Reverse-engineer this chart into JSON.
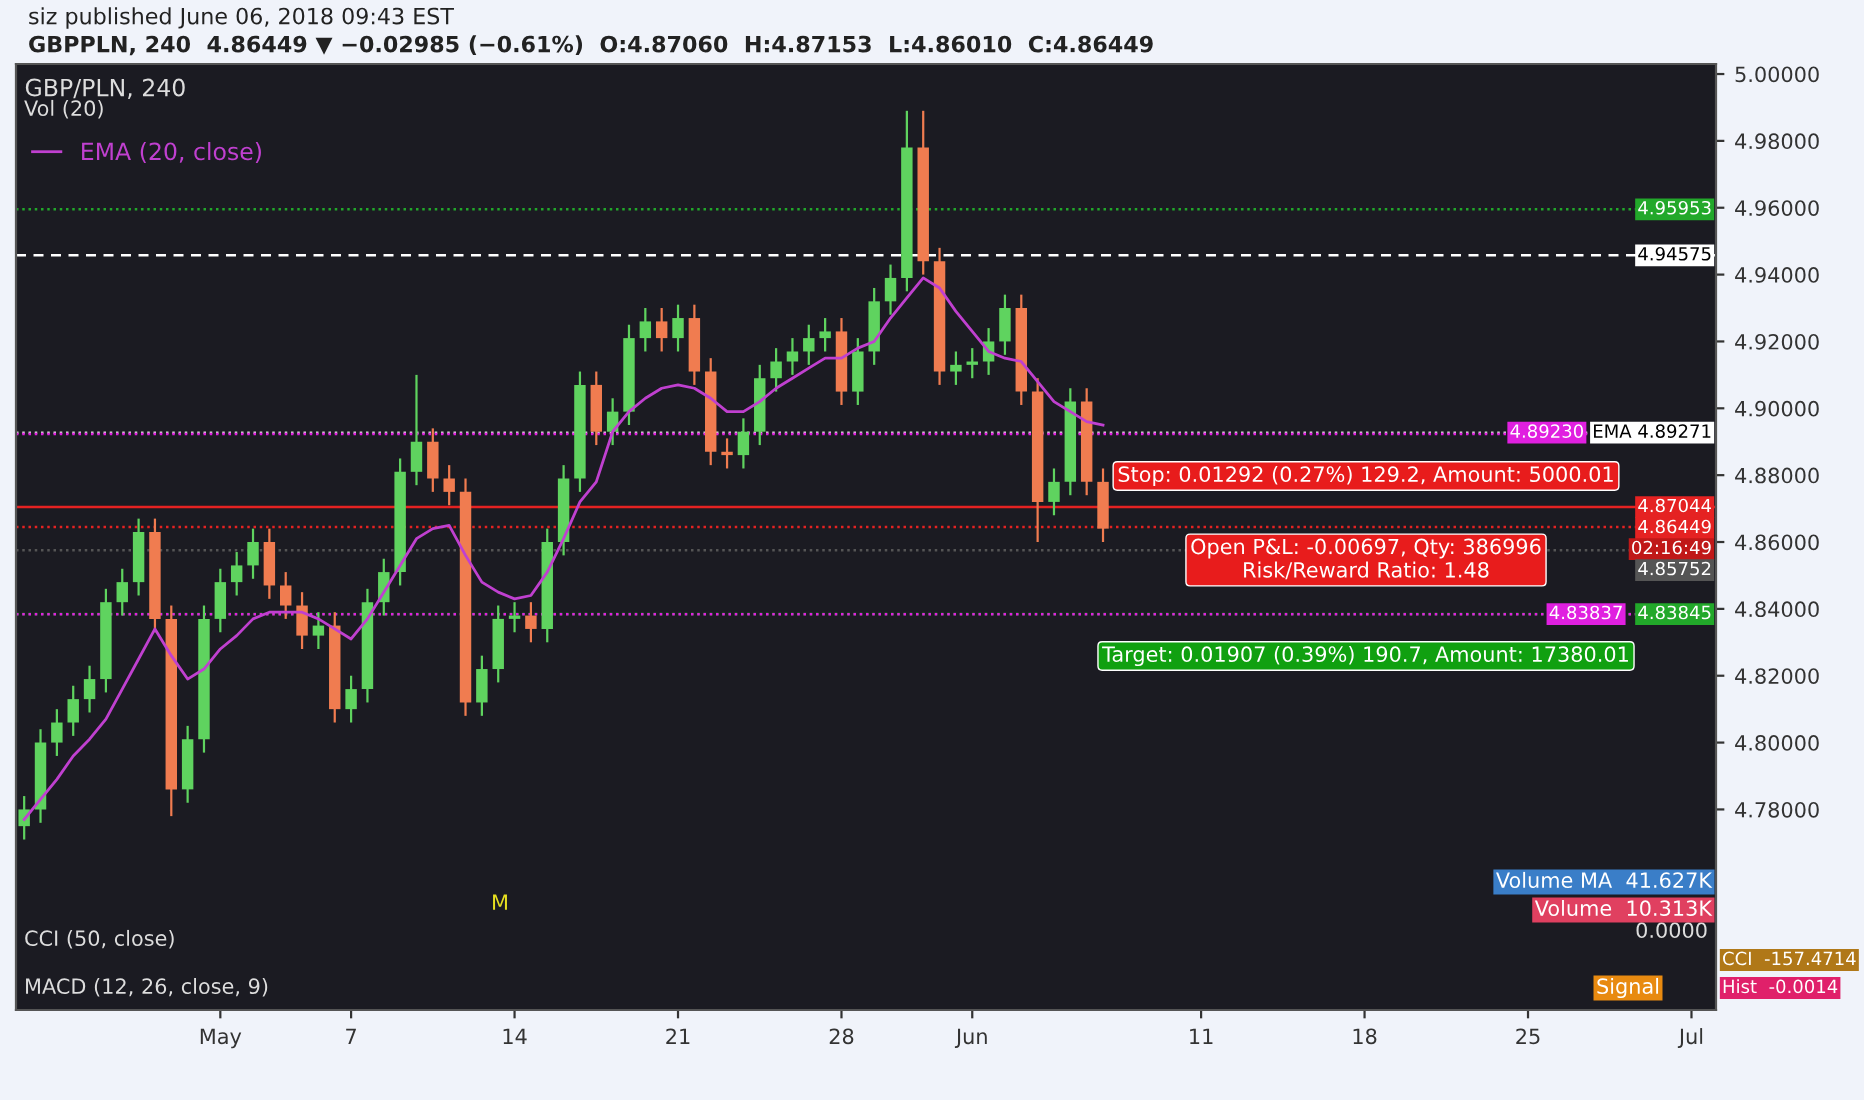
{
  "chart_data": {
    "type": "candlestick",
    "title": "GBP/PLN, 240",
    "subtitle": "siz published June 06, 2018 09:43 EST",
    "categories": [
      null,
      null,
      null,
      null,
      null,
      null,
      null,
      null,
      null,
      null,
      null,
      null,
      "May",
      null,
      null,
      null,
      null,
      null,
      null,
      null,
      "7",
      null,
      null,
      null,
      null,
      null,
      null,
      null,
      null,
      null,
      "14",
      null,
      null,
      null,
      null,
      null,
      null,
      null,
      null,
      null,
      "21",
      null,
      null,
      null,
      null,
      null,
      null,
      null,
      null,
      null,
      "28",
      null,
      null,
      null,
      null,
      null,
      null,
      null,
      "Jun",
      null,
      null,
      null,
      null,
      null,
      null,
      null,
      null,
      null,
      null,
      null,
      null,
      null,
      "11",
      null,
      null,
      null,
      null,
      null,
      null,
      null,
      null,
      null,
      "18",
      null,
      null,
      null,
      null,
      null,
      null,
      null,
      null,
      null,
      "25",
      null,
      null,
      null,
      null,
      null,
      null,
      null,
      null,
      null,
      "Jul",
      null
    ],
    "ohlc": [
      [
        4.775,
        4.784,
        4.771,
        4.78
      ],
      [
        4.78,
        4.804,
        4.776,
        4.8
      ],
      [
        4.8,
        4.81,
        4.796,
        4.806
      ],
      [
        4.806,
        4.817,
        4.802,
        4.813
      ],
      [
        4.813,
        4.823,
        4.809,
        4.819
      ],
      [
        4.819,
        4.846,
        4.815,
        4.842
      ],
      [
        4.842,
        4.852,
        4.838,
        4.848
      ],
      [
        4.848,
        4.867,
        4.844,
        4.863
      ],
      [
        4.863,
        4.867,
        4.833,
        4.837
      ],
      [
        4.837,
        4.841,
        4.778,
        4.786
      ],
      [
        4.786,
        4.805,
        4.782,
        4.801
      ],
      [
        4.801,
        4.841,
        4.797,
        4.837
      ],
      [
        4.837,
        4.852,
        4.833,
        4.848
      ],
      [
        4.848,
        4.857,
        4.844,
        4.853
      ],
      [
        4.853,
        4.864,
        4.849,
        4.86
      ],
      [
        4.86,
        4.864,
        4.843,
        4.847
      ],
      [
        4.847,
        4.851,
        4.837,
        4.841
      ],
      [
        4.841,
        4.845,
        4.828,
        4.832
      ],
      [
        4.832,
        4.839,
        4.828,
        4.835
      ],
      [
        4.835,
        4.839,
        4.806,
        4.81
      ],
      [
        4.81,
        4.82,
        4.806,
        4.816
      ],
      [
        4.816,
        4.846,
        4.812,
        4.842
      ],
      [
        4.842,
        4.855,
        4.838,
        4.851
      ],
      [
        4.851,
        4.885,
        4.847,
        4.881
      ],
      [
        4.881,
        4.91,
        4.877,
        4.89
      ],
      [
        4.89,
        4.894,
        4.875,
        4.879
      ],
      [
        4.879,
        4.883,
        4.871,
        4.875
      ],
      [
        4.875,
        4.879,
        4.808,
        4.812
      ],
      [
        4.812,
        4.826,
        4.808,
        4.822
      ],
      [
        4.822,
        4.841,
        4.818,
        4.837
      ],
      [
        4.837,
        4.842,
        4.833,
        4.838
      ],
      [
        4.838,
        4.842,
        4.83,
        4.834
      ],
      [
        4.834,
        4.864,
        4.83,
        4.86
      ],
      [
        4.86,
        4.883,
        4.856,
        4.879
      ],
      [
        4.879,
        4.911,
        4.875,
        4.907
      ],
      [
        4.907,
        4.911,
        4.889,
        4.893
      ],
      [
        4.893,
        4.903,
        4.889,
        4.899
      ],
      [
        4.899,
        4.925,
        4.895,
        4.921
      ],
      [
        4.921,
        4.93,
        4.917,
        4.926
      ],
      [
        4.926,
        4.93,
        4.917,
        4.921
      ],
      [
        4.921,
        4.931,
        4.917,
        4.927
      ],
      [
        4.927,
        4.931,
        4.907,
        4.911
      ],
      [
        4.911,
        4.915,
        4.883,
        4.887
      ],
      [
        4.887,
        4.891,
        4.882,
        4.886
      ],
      [
        4.886,
        4.897,
        4.882,
        4.893
      ],
      [
        4.893,
        4.913,
        4.889,
        4.909
      ],
      [
        4.909,
        4.918,
        4.905,
        4.914
      ],
      [
        4.914,
        4.921,
        4.91,
        4.917
      ],
      [
        4.917,
        4.925,
        4.913,
        4.921
      ],
      [
        4.921,
        4.927,
        4.917,
        4.923
      ],
      [
        4.923,
        4.927,
        4.901,
        4.905
      ],
      [
        4.905,
        4.921,
        4.901,
        4.917
      ],
      [
        4.917,
        4.936,
        4.913,
        4.932
      ],
      [
        4.932,
        4.943,
        4.928,
        4.939
      ],
      [
        4.939,
        4.989,
        4.935,
        4.978
      ],
      [
        4.978,
        4.989,
        4.94,
        4.944
      ],
      [
        4.944,
        4.948,
        4.907,
        4.911
      ],
      [
        4.911,
        4.917,
        4.907,
        4.913
      ],
      [
        4.913,
        4.918,
        4.909,
        4.914
      ],
      [
        4.914,
        4.924,
        4.91,
        4.92
      ],
      [
        4.92,
        4.934,
        4.916,
        4.93
      ],
      [
        4.93,
        4.934,
        4.901,
        4.905
      ],
      [
        4.905,
        4.909,
        4.86,
        4.872
      ],
      [
        4.872,
        4.882,
        4.868,
        4.878
      ],
      [
        4.878,
        4.906,
        4.874,
        4.902
      ],
      [
        4.902,
        4.906,
        4.874,
        4.878
      ],
      [
        4.878,
        4.882,
        4.86,
        4.864
      ],
      null,
      null,
      null,
      null,
      null,
      null,
      null,
      null,
      null,
      null,
      null,
      null,
      null,
      null,
      null,
      null,
      null,
      null,
      null,
      null,
      null,
      null,
      null,
      null,
      null,
      null,
      null,
      null,
      null,
      null,
      null,
      null,
      null,
      null,
      null,
      null,
      null
    ],
    "series": [
      {
        "name": "EMA (20, close)",
        "type": "line",
        "color": "#c040d0",
        "values": [
          4.777,
          4.783,
          4.789,
          4.796,
          4.801,
          4.807,
          4.816,
          4.825,
          4.834,
          4.826,
          4.819,
          4.822,
          4.828,
          4.832,
          4.837,
          4.839,
          4.839,
          4.839,
          4.837,
          4.834,
          4.831,
          4.837,
          4.845,
          4.853,
          4.861,
          4.864,
          4.865,
          4.856,
          4.848,
          4.845,
          4.843,
          4.844,
          4.851,
          4.861,
          4.872,
          4.878,
          4.893,
          4.899,
          4.903,
          4.906,
          4.907,
          4.906,
          4.903,
          4.899,
          4.899,
          4.902,
          4.906,
          4.909,
          4.912,
          4.915,
          4.915,
          4.918,
          4.92,
          4.927,
          4.933,
          4.939,
          4.936,
          4.929,
          4.923,
          4.917,
          4.915,
          4.914,
          4.908,
          4.902,
          4.899,
          4.896,
          4.895,
          null,
          null,
          null,
          null,
          null,
          null,
          null,
          null,
          null,
          null,
          null,
          null,
          null,
          null,
          null,
          null,
          null,
          null,
          null,
          null,
          null,
          null,
          null,
          null,
          null,
          null,
          null,
          null,
          null,
          null,
          null,
          null,
          null,
          null,
          null,
          null,
          null
        ]
      }
    ],
    "ylim": [
      4.72,
      5.003
    ],
    "yticks": [
      {
        "value": 4.78,
        "label": "4.78000"
      },
      {
        "value": 4.8,
        "label": "4.80000"
      },
      {
        "value": 4.82,
        "label": "4.82000"
      },
      {
        "value": 4.84,
        "label": "4.84000"
      },
      {
        "value": 4.86,
        "label": "4.86000"
      },
      {
        "value": 4.88,
        "label": "4.88000"
      },
      {
        "value": 4.9,
        "label": "4.90000"
      },
      {
        "value": 4.92,
        "label": "4.92000"
      },
      {
        "value": 4.94,
        "label": "4.94000"
      },
      {
        "value": 4.96,
        "label": "4.96000"
      },
      {
        "value": 4.98,
        "label": "4.98000"
      },
      {
        "value": 5.0,
        "label": "5.00000"
      }
    ],
    "ref_lines": [
      {
        "axis": "y",
        "value": 4.95953,
        "label": "4.95953",
        "color": "#22a82a",
        "line_style": "dotted"
      },
      {
        "axis": "y",
        "value": 4.94575,
        "label": "4.94575",
        "color": "#ffffff",
        "line_style": "dashed"
      },
      {
        "axis": "y",
        "value": 4.89271,
        "label": "EMA 4.89271",
        "color": "#d8d8d8",
        "line_style": "dotted"
      },
      {
        "axis": "y",
        "value": 4.8923,
        "label": "4.89230",
        "color": "#e020e0",
        "line_style": "dotted"
      },
      {
        "axis": "y",
        "value": 4.87044,
        "label": "4.87044",
        "color": "#e52222",
        "line_style": "solid"
      },
      {
        "axis": "y",
        "value": 4.86449,
        "label": "4.86449",
        "color": "#e52222",
        "line_style": "dotted"
      },
      {
        "axis": "y",
        "value": 4.85752,
        "label": "4.85752",
        "color": "#555555",
        "line_style": "dotted"
      },
      {
        "axis": "y",
        "value": 4.83845,
        "label": "4.83845",
        "color": "#22a82a",
        "line_style": "dotted"
      },
      {
        "axis": "y",
        "value": 4.83837,
        "label": "4.83837",
        "color": "#e020e0",
        "line_style": "dotted"
      }
    ],
    "annotations": [
      "Stop: 0.01292 (0.27%) 129.2, Amount: 5000.01",
      "Open P&L: -0.00697, Qty: 386996\nRisk/Reward Ratio: 1.48",
      "Target: 0.01907 (0.39%) 190.7, Amount: 17380.01",
      "02:16:49",
      "GBPPLN, 240  4.86449 ▼ −0.02985 (−0.61%)  O:4.87060  H:4.87153  L:4.86010  C:4.86449",
      "Vol (20)",
      "CCI (50, close)",
      "0.0000",
      "CCI  -157.4714",
      "MACD (12, 26, close, 9)",
      "Hist  -0.0014",
      "Signal",
      "Volume MA  41.627K",
      "Volume  10.313K",
      "M"
    ],
    "legend": "top left"
  }
}
